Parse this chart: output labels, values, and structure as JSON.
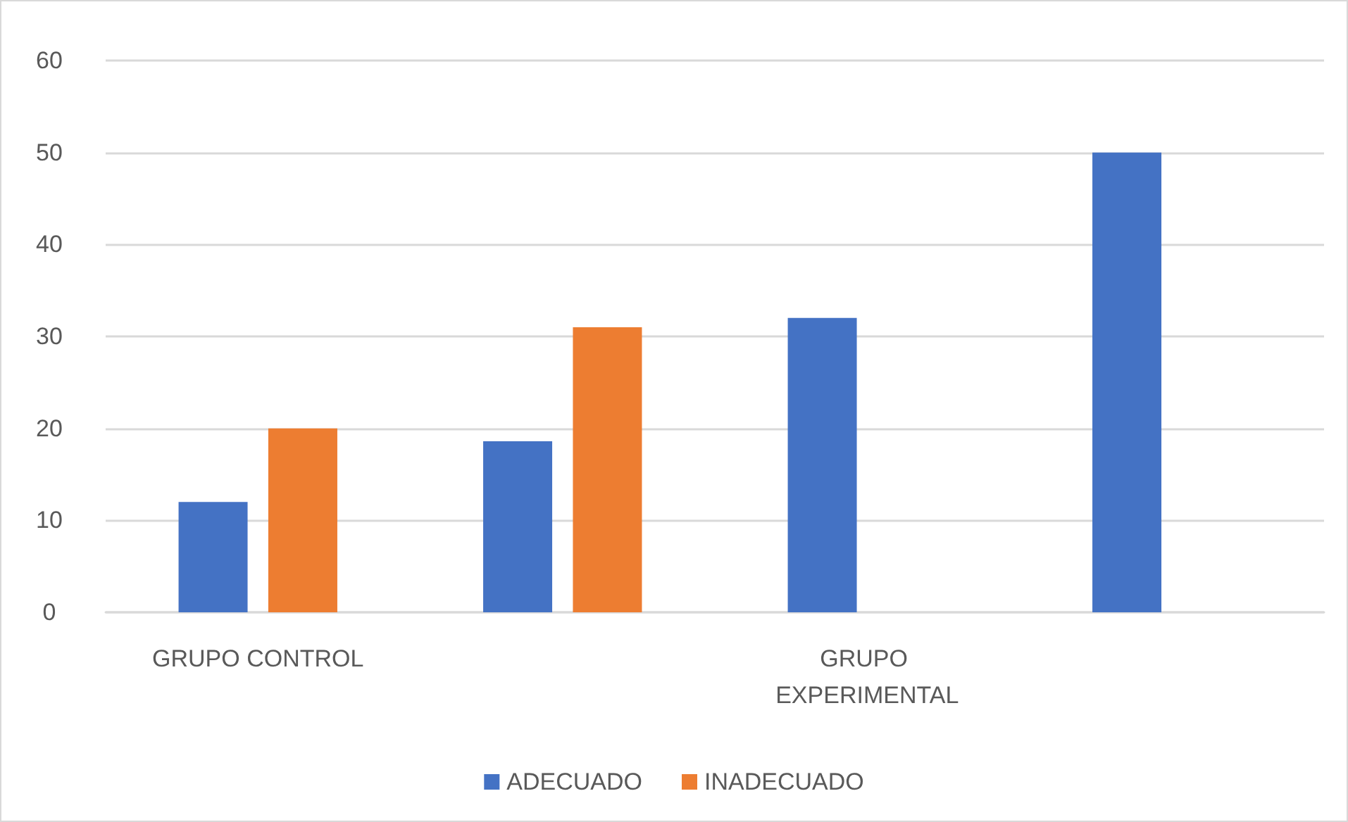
{
  "chart_data": {
    "type": "bar",
    "categories": [
      "GRUPO CONTROL",
      null,
      "GRUPO EXPERIMENTAL",
      null
    ],
    "series": [
      {
        "name": "ADECUADO",
        "color": "#4472c4",
        "values": [
          12,
          18.6,
          32,
          50
        ]
      },
      {
        "name": "INADECUADO",
        "color": "#ed7d31",
        "values": [
          20,
          31,
          null,
          null
        ]
      }
    ],
    "ylim": [
      0,
      60
    ],
    "yticks": [
      0,
      10,
      20,
      30,
      40,
      50,
      60
    ],
    "grid": "y",
    "legend": "bottom"
  }
}
